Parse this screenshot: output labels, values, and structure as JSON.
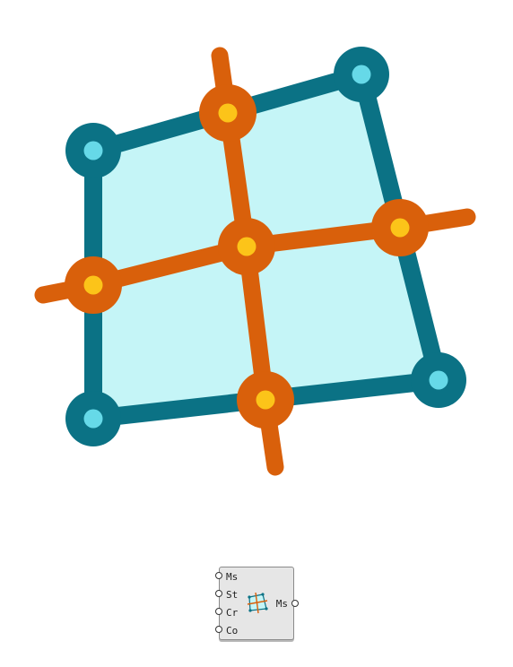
{
  "colors": {
    "face_fill": "#c5f5f7",
    "edge": "#0b7285",
    "corner_inner": "#66d9e8",
    "grid": "#d9600b",
    "grid_inner": "#fcc419"
  },
  "mesh": {
    "corners": [
      {
        "name": "top-left",
        "u": 0,
        "v": 0
      },
      {
        "name": "top-right",
        "u": 1,
        "v": 0
      },
      {
        "name": "bottom-right",
        "u": 1,
        "v": 1
      },
      {
        "name": "bottom-left",
        "u": 0,
        "v": 1
      }
    ],
    "subdivisions": 2
  },
  "component": {
    "inputs": [
      "Ms",
      "St",
      "Cr",
      "Co"
    ],
    "output": "Ms",
    "icon": "mesh-grid-icon"
  }
}
